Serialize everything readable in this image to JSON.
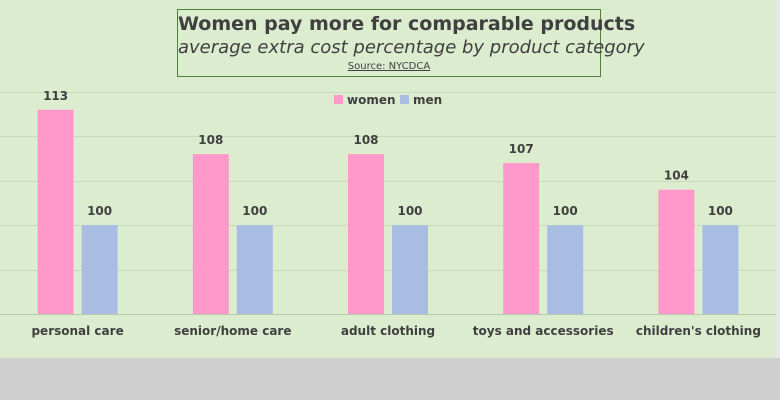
{
  "chart_data": {
    "type": "bar",
    "title": "Women pay more for comparable products",
    "subtitle": "average extra cost percentage by product category",
    "source": "Source: NYCDCA",
    "categories": [
      "personal care",
      "senior/home care",
      "adult clothing",
      "toys and accessories",
      "children's clothing"
    ],
    "series": [
      {
        "name": "women",
        "color": "#ff99cc",
        "values": [
          113,
          108,
          108,
          107,
          104
        ]
      },
      {
        "name": "men",
        "color": "#a9bde3",
        "values": [
          100,
          100,
          100,
          100,
          100
        ]
      }
    ],
    "xlabel": "",
    "ylabel": "",
    "ylim": [
      90,
      115
    ],
    "grid": true,
    "legend": "top-center"
  }
}
